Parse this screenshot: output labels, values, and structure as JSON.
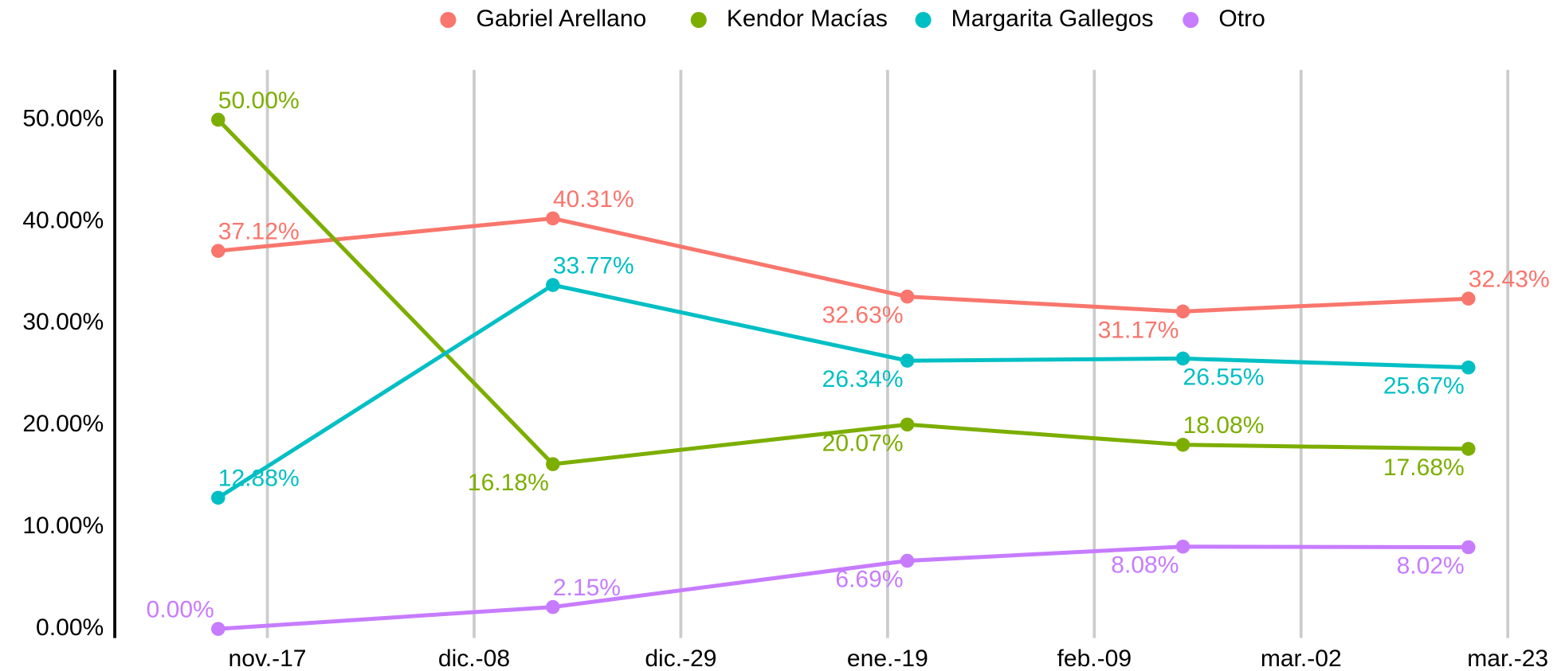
{
  "chart_data": {
    "type": "line",
    "x": [
      -5,
      29,
      65,
      93,
      122
    ],
    "xlim": [
      -15.5,
      131
    ],
    "xticks": [
      {
        "value": 0,
        "label": "nov.-17"
      },
      {
        "value": 21,
        "label": "dic.-08"
      },
      {
        "value": 42,
        "label": "dic.-29"
      },
      {
        "value": 63,
        "label": "ene.-19"
      },
      {
        "value": 84,
        "label": "feb.-09"
      },
      {
        "value": 105,
        "label": "mar.-02"
      },
      {
        "value": 126,
        "label": "mar.-23"
      }
    ],
    "ylim": [
      -0.9,
      54.9
    ],
    "yticks": [
      {
        "value": 0,
        "label": "0.00%"
      },
      {
        "value": 10,
        "label": "10.00%"
      },
      {
        "value": 20,
        "label": "20.00%"
      },
      {
        "value": 30,
        "label": "30.00%"
      },
      {
        "value": 40,
        "label": "40.00%"
      },
      {
        "value": 50,
        "label": "50.00%"
      }
    ],
    "grid": "x",
    "legend": "top",
    "series": [
      {
        "name": "Gabriel Arellano",
        "color": "#F8766D",
        "values": [
          37.12,
          40.31,
          32.63,
          31.17,
          32.43
        ],
        "value_labels": [
          "37.12%",
          "40.31%",
          "32.63%",
          "31.17%",
          "32.43%"
        ]
      },
      {
        "name": "Kendor Macías",
        "color": "#7CAE00",
        "values": [
          50.0,
          16.18,
          20.07,
          18.08,
          17.68
        ],
        "value_labels": [
          "50.00%",
          "16.18%",
          "20.07%",
          "18.08%",
          "17.68%"
        ]
      },
      {
        "name": "Margarita Gallegos",
        "color": "#00BFC4",
        "values": [
          12.88,
          33.77,
          26.34,
          26.55,
          25.67
        ],
        "value_labels": [
          "12.88%",
          "33.77%",
          "26.34%",
          "26.55%",
          "25.67%"
        ]
      },
      {
        "name": "Otro",
        "color": "#C77CFF",
        "values": [
          0.0,
          2.15,
          6.69,
          8.08,
          8.02
        ],
        "value_labels": [
          "0.00%",
          "2.15%",
          "6.69%",
          "8.08%",
          "8.02%"
        ]
      }
    ]
  }
}
